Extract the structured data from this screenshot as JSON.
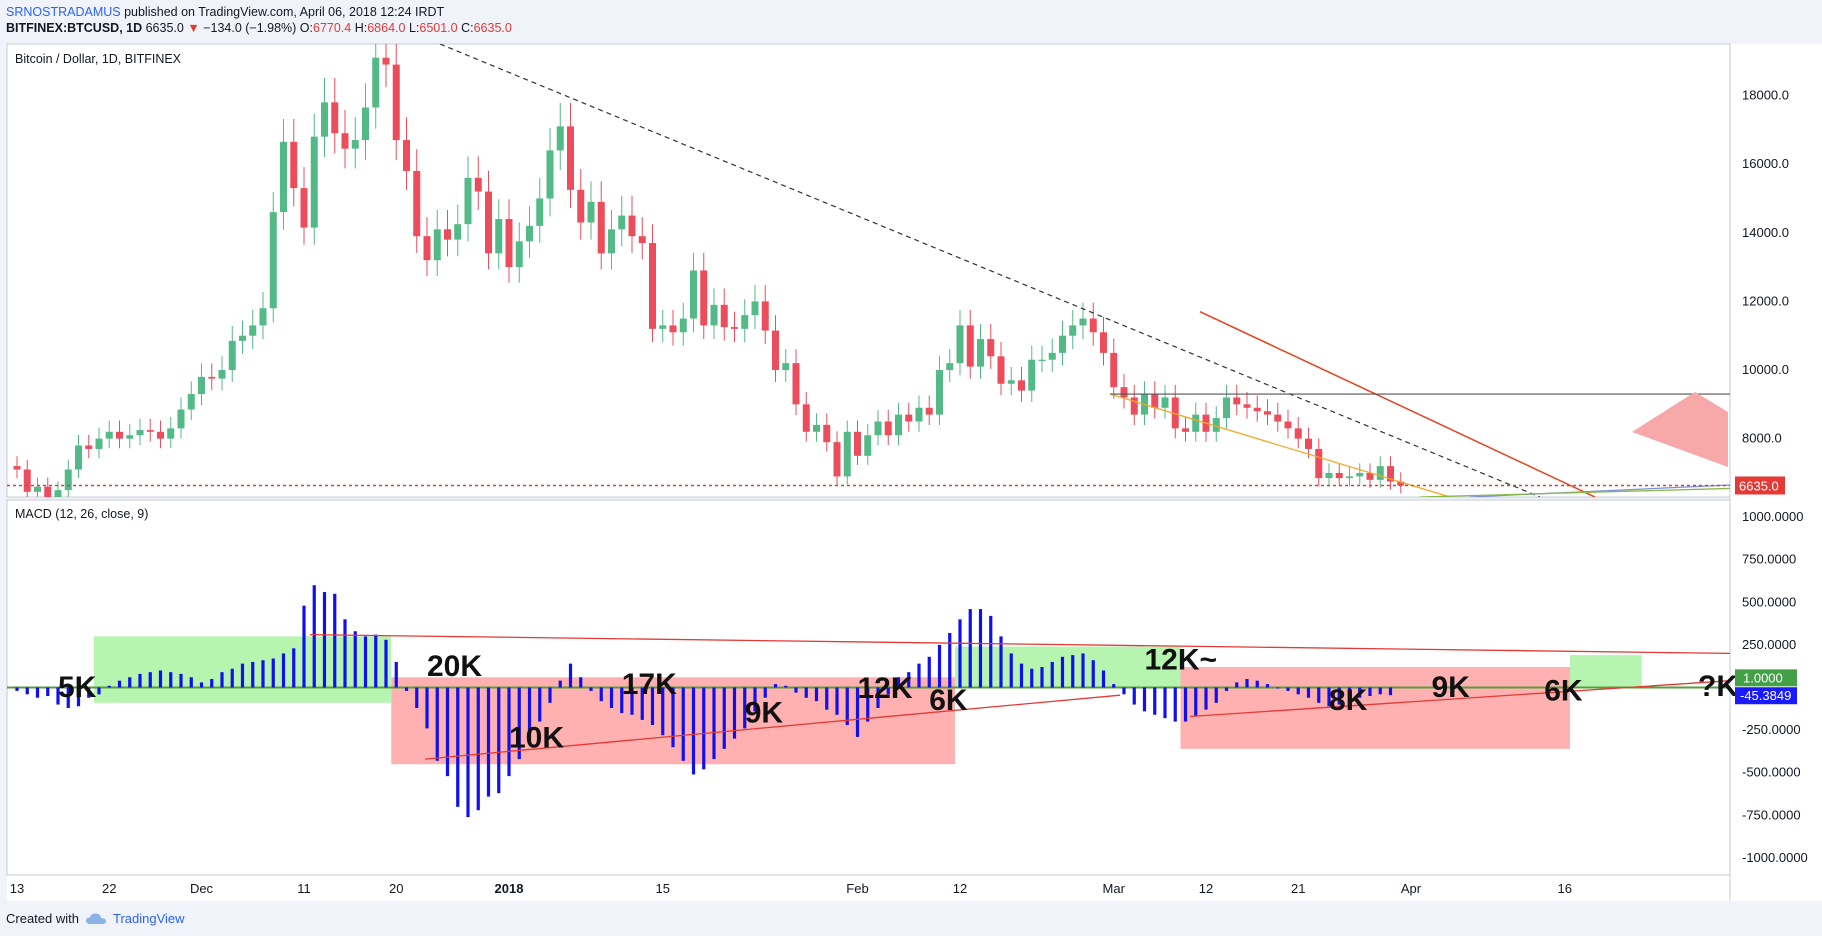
{
  "header": {
    "author": "SRNOSTRADAMUS",
    "published": "published on TradingView.com, April 06, 2018 12:24 IRDT",
    "symbol_line": "BITFINEX:BTCUSD, 1D",
    "last": "6635.0",
    "change": "−134.0 (−1.98%)",
    "o_label": "O:",
    "o": "6770.4",
    "h_label": "H:",
    "h": "6864.0",
    "l_label": "L:",
    "l": "6501.0",
    "c_label": "C:",
    "c": "6635.0"
  },
  "footer": {
    "created_with": "Created with",
    "brand": "TradingView"
  },
  "colors": {
    "up": "#53b987",
    "down": "#eb4d5c",
    "macd_bar": "#1010ee",
    "green_zone": "#b6f5b0",
    "red_zone": "#ffb0b0"
  },
  "chart_data": [
    {
      "type": "candlestick",
      "title": "Bitcoin / Dollar, 1D, BITFINEX",
      "ylim": [
        6300,
        19500
      ],
      "y_ticks": [
        "8000.0",
        "10000.0",
        "12000.0",
        "14000.0",
        "16000.0",
        "18000.0"
      ],
      "y_tick_values": [
        8000,
        10000,
        12000,
        14000,
        16000,
        18000
      ],
      "price_label": "6635.0",
      "price_value": 6635,
      "resistance_value": 9300,
      "x_labels": [
        "13",
        "22",
        "Dec",
        "11",
        "20",
        "2018",
        "15",
        "Feb",
        "12",
        "Mar",
        "12",
        "21",
        "Apr",
        "16"
      ],
      "x_label_index": [
        0,
        9,
        18,
        28,
        37,
        48,
        63,
        82,
        92,
        107,
        116,
        125,
        136,
        151
      ],
      "close": [
        7100,
        6450,
        6600,
        6300,
        6500,
        7100,
        7800,
        7700,
        8000,
        8200,
        8000,
        8100,
        8250,
        8200,
        8000,
        8300,
        8850,
        9300,
        9800,
        9750,
        10000,
        10850,
        11000,
        11300,
        11800,
        14600,
        16650,
        15300,
        14150,
        16800,
        17800,
        16900,
        16450,
        16700,
        17650,
        19100,
        18900,
        16700,
        15800,
        13900,
        13200,
        14100,
        13800,
        14250,
        15600,
        15200,
        13400,
        14400,
        13000,
        13750,
        14200,
        15000,
        16400,
        17100,
        15250,
        14300,
        14900,
        13400,
        14100,
        14500,
        13900,
        13700,
        11200,
        11300,
        11100,
        11500,
        12900,
        11300,
        11900,
        11250,
        11200,
        11600,
        12000,
        11150,
        10000,
        10200,
        9000,
        8200,
        8400,
        7900,
        6900,
        8200,
        7500,
        8100,
        8500,
        8100,
        8700,
        8500,
        8900,
        8700,
        10000,
        10200,
        11300,
        10100,
        10900,
        10400,
        9600,
        9700,
        9400,
        10300,
        10300,
        10500,
        11000,
        11300,
        11500,
        11100,
        10500,
        9500,
        9200,
        8700,
        9300,
        8900,
        9200,
        8300,
        8200,
        8700,
        8200,
        8600,
        9200,
        9000,
        8900,
        8800,
        8700,
        8500,
        8300,
        8000,
        7700,
        6850,
        7000,
        6850,
        6900,
        7000,
        6800,
        7200,
        6750,
        6635
      ],
      "annotations": [
        "?"
      ],
      "legend": "none",
      "grid": false
    },
    {
      "type": "bar",
      "title": "MACD (12, 26, close, 9)",
      "ylim": [
        -1100,
        1100
      ],
      "y_ticks": [
        "1000.0000",
        "750.0000",
        "500.0000",
        "250.0000",
        "-250.0000",
        "-500.0000",
        "-750.0000",
        "-1000.0000"
      ],
      "y_tick_values": [
        1000,
        750,
        500,
        250,
        -250,
        -500,
        -750,
        -1000
      ],
      "value_labels": [
        "1.0000",
        "-45.3849"
      ],
      "value_label_values": [
        1,
        -45.3849
      ],
      "histogram": [
        -20,
        -40,
        -60,
        -50,
        -100,
        -120,
        -110,
        -60,
        -40,
        10,
        40,
        60,
        80,
        90,
        100,
        90,
        80,
        60,
        30,
        50,
        90,
        110,
        140,
        150,
        160,
        170,
        200,
        230,
        480,
        600,
        560,
        550,
        400,
        330,
        300,
        310,
        280,
        150,
        -20,
        -120,
        -240,
        -430,
        -520,
        -700,
        -760,
        -720,
        -640,
        -620,
        -520,
        -420,
        -300,
        -200,
        -90,
        40,
        140,
        60,
        -20,
        -80,
        -120,
        -150,
        -160,
        -190,
        -220,
        -280,
        -350,
        -430,
        -510,
        -480,
        -420,
        -360,
        -300,
        -240,
        -140,
        -60,
        20,
        10,
        -30,
        -60,
        -80,
        -130,
        -160,
        -220,
        -290,
        -200,
        -120,
        -40,
        60,
        90,
        140,
        180,
        250,
        320,
        400,
        460,
        460,
        420,
        300,
        200,
        140,
        110,
        120,
        150,
        180,
        190,
        200,
        160,
        100,
        20,
        -40,
        -100,
        -140,
        -160,
        -180,
        -200,
        -200,
        -170,
        -130,
        -90,
        -20,
        30,
        50,
        40,
        20,
        0,
        -20,
        -40,
        -60,
        -90,
        -110,
        -100,
        -80,
        -60,
        -50,
        -40,
        -45
      ],
      "zones": [
        {
          "kind": "green",
          "start": 8,
          "end": 37,
          "top": 300,
          "bottom": -90,
          "label": "20K"
        },
        {
          "kind": "red",
          "start": 37,
          "end": 92,
          "top": 60,
          "bottom": -450,
          "label": "17K"
        },
        {
          "kind": "green",
          "start": 92,
          "end": 114,
          "top": 240,
          "bottom": 0,
          "label": "12K~"
        },
        {
          "kind": "red",
          "start": 114,
          "end": 152,
          "top": 120,
          "bottom": -360,
          "label": "9K"
        },
        {
          "kind": "green",
          "start": 152,
          "end": 159,
          "top": 190,
          "bottom": 0,
          "label": "?K"
        }
      ],
      "labels": [
        {
          "text": "5K",
          "x": 4,
          "y": 20
        },
        {
          "text": "20K",
          "x": 40,
          "y": 145
        },
        {
          "text": "10K",
          "x": 48,
          "y": -275
        },
        {
          "text": "17K",
          "x": 59,
          "y": 38
        },
        {
          "text": "9K",
          "x": 71,
          "y": -130
        },
        {
          "text": "12K",
          "x": 82,
          "y": 15
        },
        {
          "text": "6K",
          "x": 89,
          "y": -55
        },
        {
          "text": "12K~",
          "x": 110,
          "y": 183
        },
        {
          "text": "8K",
          "x": 128,
          "y": -55
        },
        {
          "text": "9K",
          "x": 138,
          "y": 20
        },
        {
          "text": "6K",
          "x": 149,
          "y": 1
        },
        {
          "text": "?K",
          "x": 164,
          "y": 25
        }
      ],
      "legend": "none",
      "grid": false
    }
  ]
}
